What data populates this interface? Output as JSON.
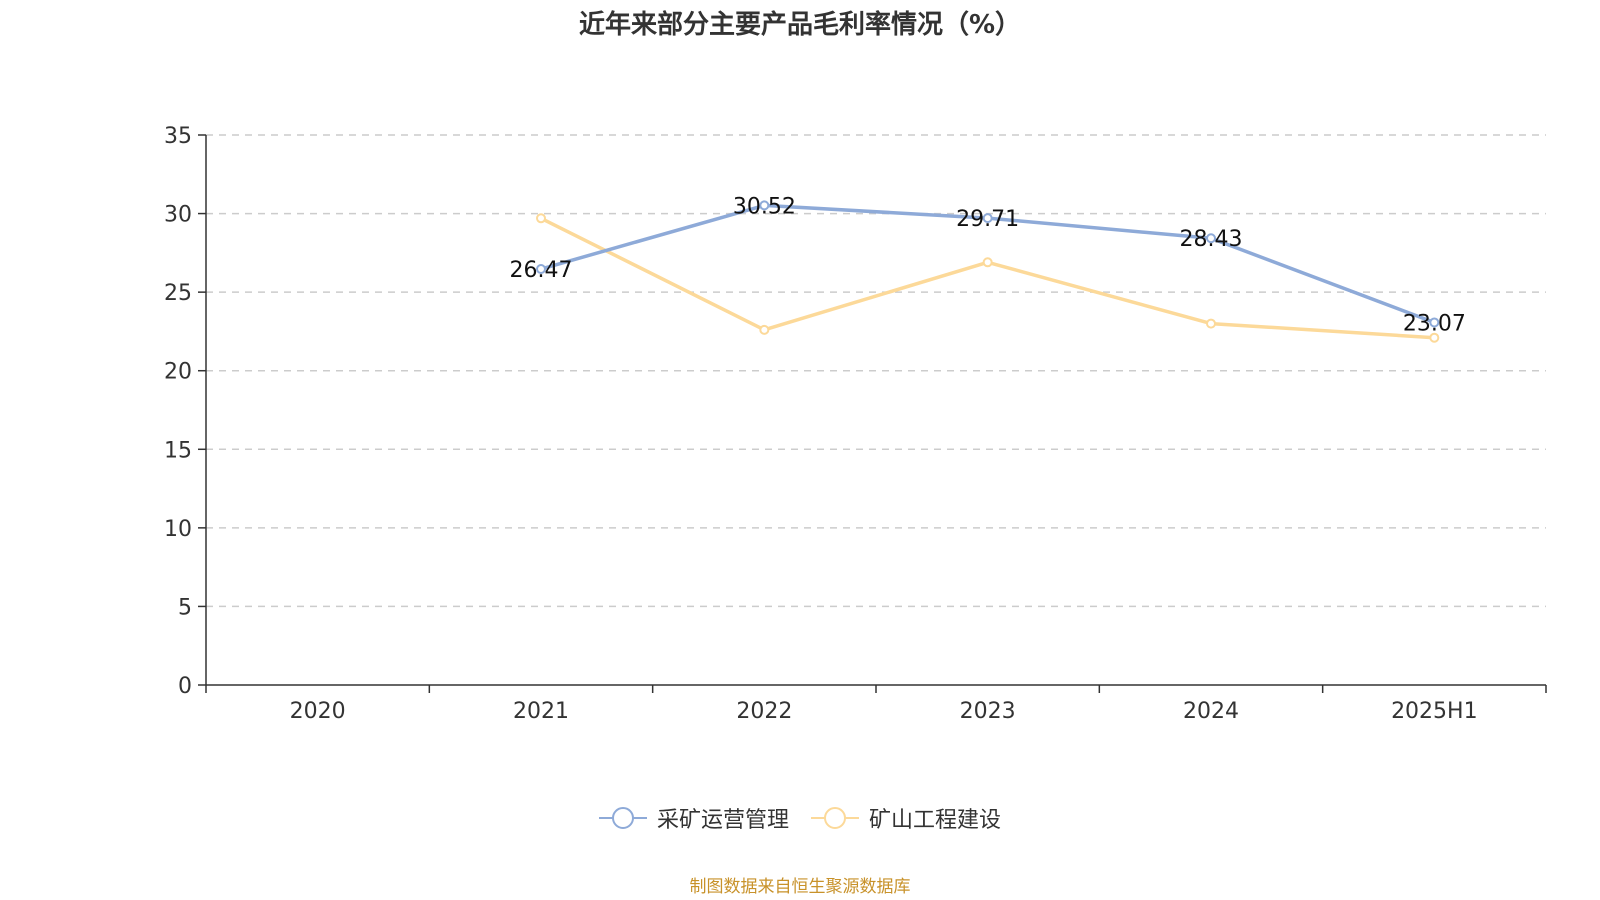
{
  "chart_data": {
    "type": "line",
    "title": "近年来部分主要产品毛利率情况（%）",
    "xlabel": "",
    "ylabel": "",
    "categories": [
      "2020",
      "2021",
      "2022",
      "2023",
      "2024",
      "2025H1"
    ],
    "ylim": [
      0,
      35
    ],
    "yticks": [
      0,
      5,
      10,
      15,
      20,
      25,
      30,
      35
    ],
    "grid": true,
    "legend_position": "bottom",
    "series": [
      {
        "name": "采矿运营管理",
        "color": "#8eaad8",
        "values": [
          null,
          26.47,
          30.52,
          29.71,
          28.43,
          23.07
        ],
        "show_labels": true
      },
      {
        "name": "矿山工程建设",
        "color": "#fcd999",
        "values": [
          null,
          29.7,
          22.6,
          26.9,
          23.0,
          22.1
        ],
        "show_labels": false
      }
    ]
  },
  "source_note": "制图数据来自恒生聚源数据库"
}
